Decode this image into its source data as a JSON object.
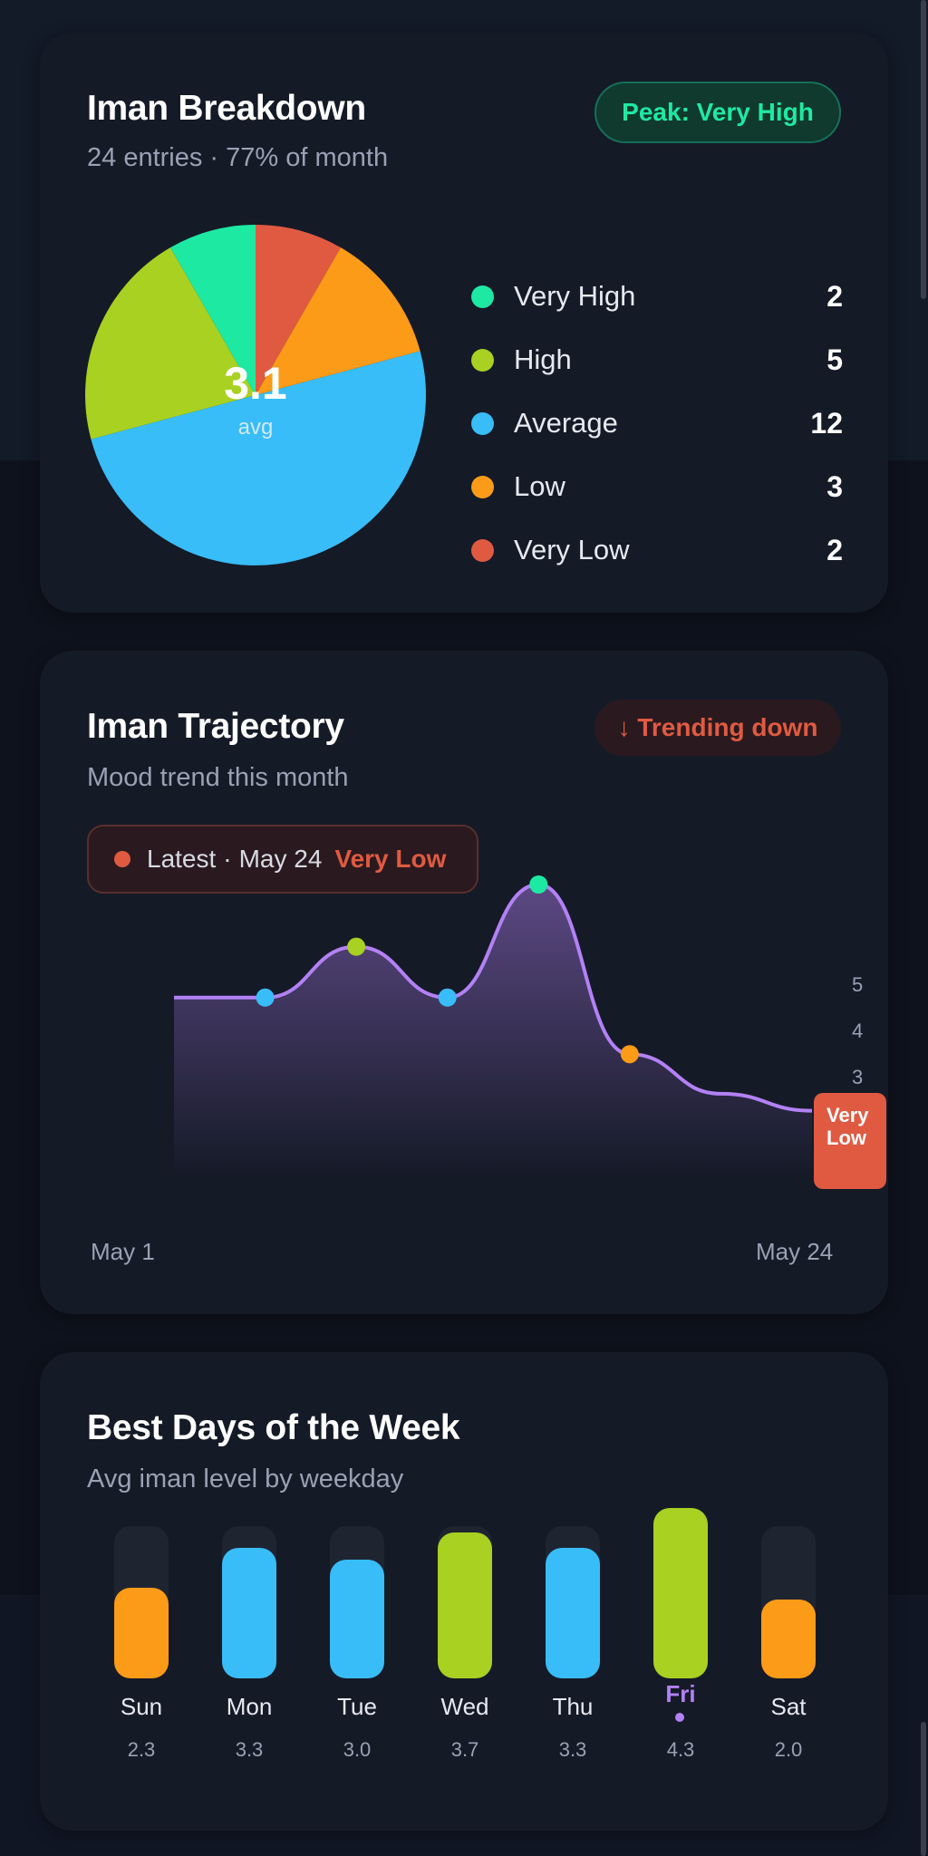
{
  "colors": {
    "very_high": "#1ee9a3",
    "high": "#a8d122",
    "average": "#38bdf8",
    "low": "#fb9b17",
    "very_low": "#e05a41",
    "accent": "#b381f5"
  },
  "breakdown": {
    "title": "Iman Breakdown",
    "subtitle": "24 entries · 77% of month",
    "peak_badge": "Peak: Very High",
    "center_value": "3.1",
    "center_label": "avg"
  },
  "trajectory": {
    "title": "Iman Trajectory",
    "subtitle": "Mood trend this month",
    "trend_badge": "↓ Trending down",
    "latest_label": "Latest",
    "latest_date": "May 24",
    "latest_mood": "Very Low",
    "end_tag": "Very Low"
  },
  "weekdays": {
    "title": "Best Days of the Week",
    "subtitle": "Avg iman level by weekday",
    "highlight": "Fri"
  },
  "chart_data": [
    {
      "type": "pie",
      "categories": [
        "Very High",
        "High",
        "Average",
        "Low",
        "Very Low"
      ],
      "values": [
        2,
        5,
        12,
        3,
        2
      ],
      "counts": [
        "2",
        "5",
        "12",
        "3",
        "2"
      ],
      "colors": [
        "#1ee9a3",
        "#a8d122",
        "#38bdf8",
        "#fb9b17",
        "#e05a41"
      ],
      "legend": "right"
    },
    {
      "type": "area",
      "x": [
        "May 1",
        "",
        "",
        "",
        "",
        "",
        "",
        "May 24"
      ],
      "values": [
        4,
        4,
        4.9,
        4,
        6,
        3,
        2.3,
        2
      ],
      "point_colors": [
        "",
        "#38bdf8",
        "#a8d122",
        "#38bdf8",
        "#1ee9a3",
        "#fb9b17",
        "",
        ""
      ],
      "ylim": [
        1,
        6
      ],
      "yticks": [
        "5",
        "4",
        "3",
        "2"
      ],
      "yaxis": "right",
      "grid": false,
      "line_color": "#b381f5"
    },
    {
      "type": "bar",
      "categories": [
        "Sun",
        "Mon",
        "Tue",
        "Wed",
        "Thu",
        "Fri",
        "Sat"
      ],
      "values": [
        2.3,
        3.3,
        3.0,
        3.7,
        3.3,
        4.3,
        2.0
      ],
      "labels": [
        "2.3",
        "3.3",
        "3.0",
        "3.7",
        "3.3",
        "4.3",
        "2.0"
      ],
      "colors": [
        "#fb9b17",
        "#38bdf8",
        "#38bdf8",
        "#a8d122",
        "#38bdf8",
        "#a8d122",
        "#fb9b17"
      ],
      "ylim": [
        0,
        5
      ]
    }
  ]
}
